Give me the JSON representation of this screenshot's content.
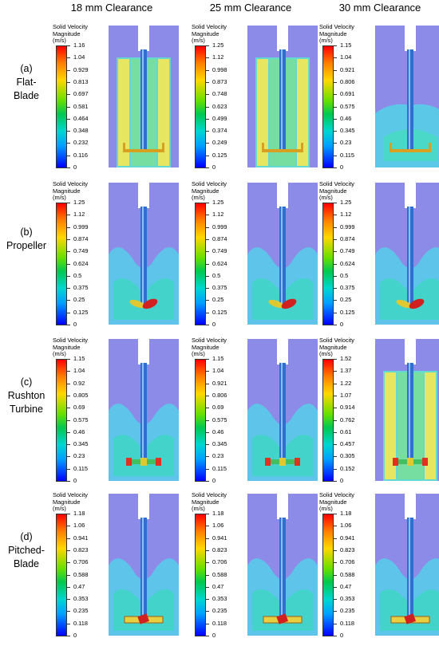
{
  "columns": [
    "18 mm Clearance",
    "25 mm Clearance",
    "30 mm Clearance"
  ],
  "legend_title": [
    "Solid Velocity",
    "Magnitude",
    "(m/s)"
  ],
  "rows": [
    {
      "label": [
        "(a)",
        "Flat-",
        "Blade"
      ],
      "impeller": "flat-blade",
      "cells": [
        {
          "scale": [
            "1.16",
            "1.04",
            "0.929",
            "0.813",
            "0.697",
            "0.581",
            "0.464",
            "0.348",
            "0.232",
            "0.116",
            "0"
          ],
          "flow": "full"
        },
        {
          "scale": [
            "1.25",
            "1.12",
            "0.998",
            "0.873",
            "0.748",
            "0.623",
            "0.499",
            "0.374",
            "0.249",
            "0.125",
            "0"
          ],
          "flow": "full"
        },
        {
          "scale": [
            "1.15",
            "1.04",
            "0.921",
            "0.806",
            "0.691",
            "0.575",
            "0.46",
            "0.345",
            "0.23",
            "0.115",
            "0"
          ],
          "flow": "low"
        }
      ]
    },
    {
      "label": [
        "(b)",
        "Propeller"
      ],
      "impeller": "propeller",
      "cells": [
        {
          "scale": [
            "1.25",
            "1.12",
            "0.999",
            "0.874",
            "0.749",
            "0.624",
            "0.5",
            "0.375",
            "0.25",
            "0.125",
            "0"
          ],
          "flow": "cone"
        },
        {
          "scale": [
            "1.25",
            "1.12",
            "0.999",
            "0.874",
            "0.749",
            "0.624",
            "0.5",
            "0.375",
            "0.25",
            "0.125",
            "0"
          ],
          "flow": "cone"
        },
        {
          "scale": [
            "1.25",
            "1.12",
            "0.999",
            "0.874",
            "0.749",
            "0.624",
            "0.5",
            "0.375",
            "0.25",
            "0.125",
            "0"
          ],
          "flow": "cone"
        }
      ]
    },
    {
      "label": [
        "(c)",
        "Rushton",
        "Turbine"
      ],
      "impeller": "rushton",
      "cells": [
        {
          "scale": [
            "1.15",
            "1.04",
            "0.92",
            "0.805",
            "0.69",
            "0.575",
            "0.46",
            "0.345",
            "0.23",
            "0.115",
            "0"
          ],
          "flow": "cone"
        },
        {
          "scale": [
            "1.15",
            "1.04",
            "0.921",
            "0.806",
            "0.69",
            "0.575",
            "0.46",
            "0.345",
            "0.23",
            "0.115",
            "0"
          ],
          "flow": "cone"
        },
        {
          "scale": [
            "1.52",
            "1.37",
            "1.22",
            "1.07",
            "0.914",
            "0.762",
            "0.61",
            "0.457",
            "0.305",
            "0.152",
            "0"
          ],
          "flow": "full"
        }
      ]
    },
    {
      "label": [
        "(d)",
        "Pitched-",
        "Blade"
      ],
      "impeller": "pitched",
      "cells": [
        {
          "scale": [
            "1.18",
            "1.06",
            "0.941",
            "0.823",
            "0.706",
            "0.588",
            "0.47",
            "0.353",
            "0.235",
            "0.118",
            "0"
          ],
          "flow": "cone"
        },
        {
          "scale": [
            "1.18",
            "1.06",
            "0.941",
            "0.823",
            "0.706",
            "0.588",
            "0.47",
            "0.353",
            "0.235",
            "0.118",
            "0"
          ],
          "flow": "cone"
        },
        {
          "scale": [
            "1.18",
            "1.06",
            "0.941",
            "0.823",
            "0.706",
            "0.588",
            "0.47",
            "0.353",
            "0.235",
            "0.118",
            "0"
          ],
          "flow": "cone"
        }
      ]
    }
  ]
}
